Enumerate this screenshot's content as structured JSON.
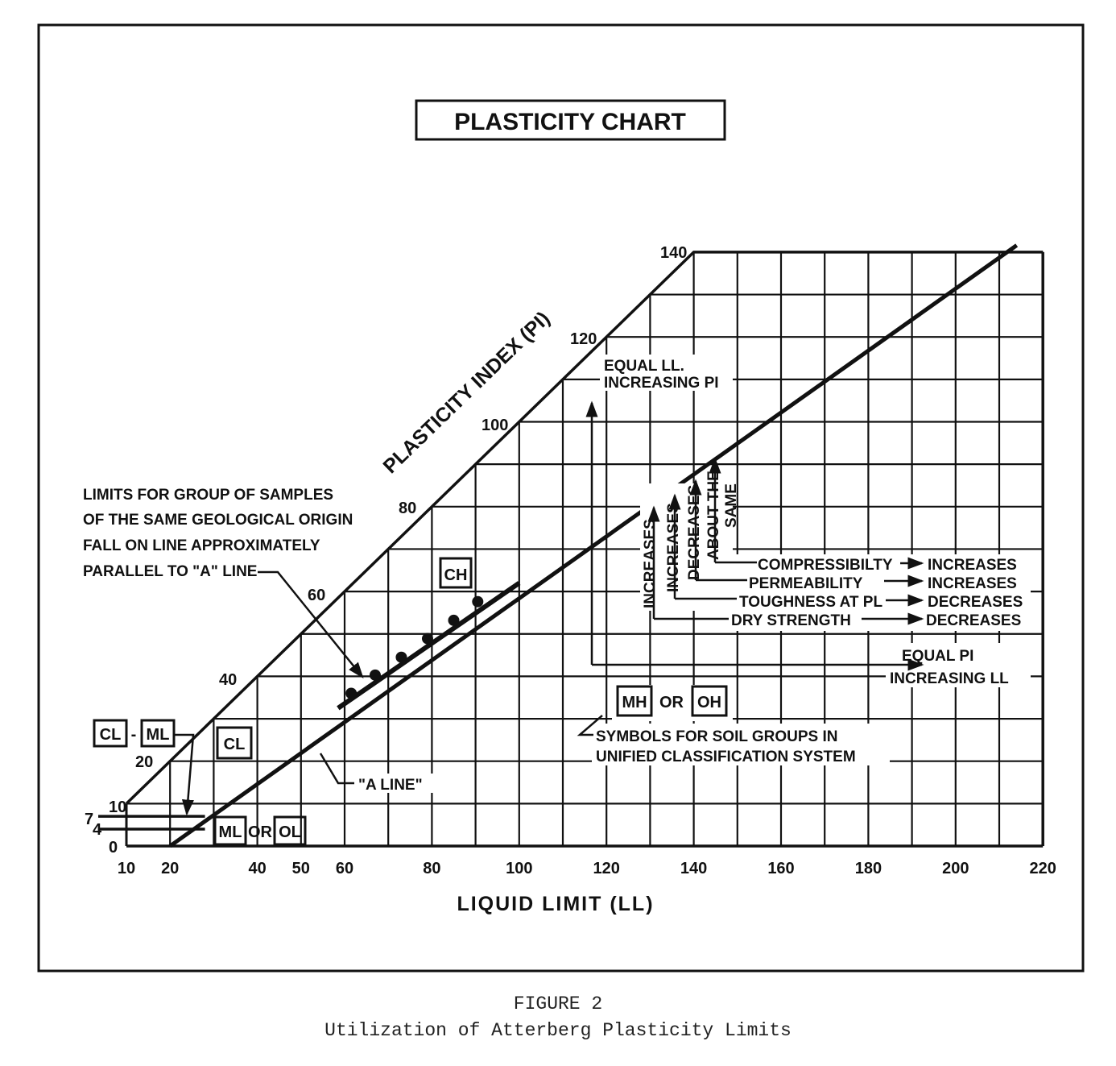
{
  "chart_data": {
    "type": "line",
    "title": "PLASTICITY CHART",
    "xlabel": "LIQUID LIMIT (LL)",
    "ylabel": "PLASTICITY INDEX (PI)",
    "xlim": [
      10,
      220
    ],
    "ylim": [
      0,
      140
    ],
    "grid": true,
    "x_ticks": [
      "10",
      "20",
      "40",
      "50",
      "60",
      "80",
      "100",
      "120",
      "140",
      "160",
      "180",
      "200",
      "220"
    ],
    "x_tick_values": [
      10,
      20,
      40,
      50,
      60,
      80,
      100,
      120,
      140,
      160,
      180,
      200,
      220
    ],
    "y_ticks_left": [
      "10",
      "7",
      "4",
      "0"
    ],
    "y_ticks_diagonal": [
      "20",
      "40",
      "60",
      "80",
      "100",
      "120",
      "140"
    ],
    "upper_boundary": {
      "equation": "PI = LL",
      "points": [
        [
          10,
          10
        ],
        [
          140,
          140
        ],
        [
          220,
          140
        ]
      ]
    },
    "a_line": {
      "label": "\"A LINE\"",
      "points": [
        [
          20,
          0
        ],
        [
          214,
          141.6
        ]
      ]
    },
    "sample_line": {
      "points": [
        [
          58.5,
          32.5
        ],
        [
          100,
          62
        ]
      ]
    },
    "sample_points": [
      [
        61.5,
        36
      ],
      [
        67,
        40.3
      ],
      [
        73,
        44.5
      ],
      [
        79,
        48.9
      ],
      [
        85,
        53.2
      ],
      [
        90.5,
        57.6
      ]
    ],
    "soil_groups": {
      "ch": "CH",
      "cl": "CL",
      "cl_ml_a": "CL",
      "cl_ml_dash": "-",
      "cl_ml_b": "ML",
      "ml": "ML",
      "ml_or": "OR",
      "ol": "OL",
      "mh": "MH",
      "mh_or": "OR",
      "oh": "OH"
    },
    "annotations": {
      "limits": [
        "LIMITS FOR GROUP OF SAMPLES",
        "OF THE SAME GEOLOGICAL ORIGIN",
        "FALL ON LINE APPROXIMATELY",
        "PARALLEL TO \"A\" LINE"
      ],
      "equal_ll": [
        "EQUAL LL.",
        "INCREASING PI"
      ],
      "equal_pi": [
        "EQUAL PI",
        "INCREASING LL"
      ],
      "symbols": [
        "SYMBOLS FOR SOIL GROUPS IN",
        "UNIFIED CLASSIFICATION SYSTEM"
      ],
      "vertical": [
        "INCREASES",
        "INCREASES",
        "DECREASES",
        "ABOUT THE",
        "SAME"
      ],
      "properties": [
        {
          "name": "COMPRESSIBILTY",
          "effect": "INCREASES"
        },
        {
          "name": "PERMEABILITY",
          "effect": "INCREASES"
        },
        {
          "name": "TOUGHNESS AT PL",
          "effect": "DECREASES"
        },
        {
          "name": "DRY STRENGTH",
          "effect": "DECREASES"
        }
      ]
    }
  },
  "caption": {
    "figure": "FIGURE 2",
    "text": "Utilization of Atterberg Plasticity Limits"
  }
}
